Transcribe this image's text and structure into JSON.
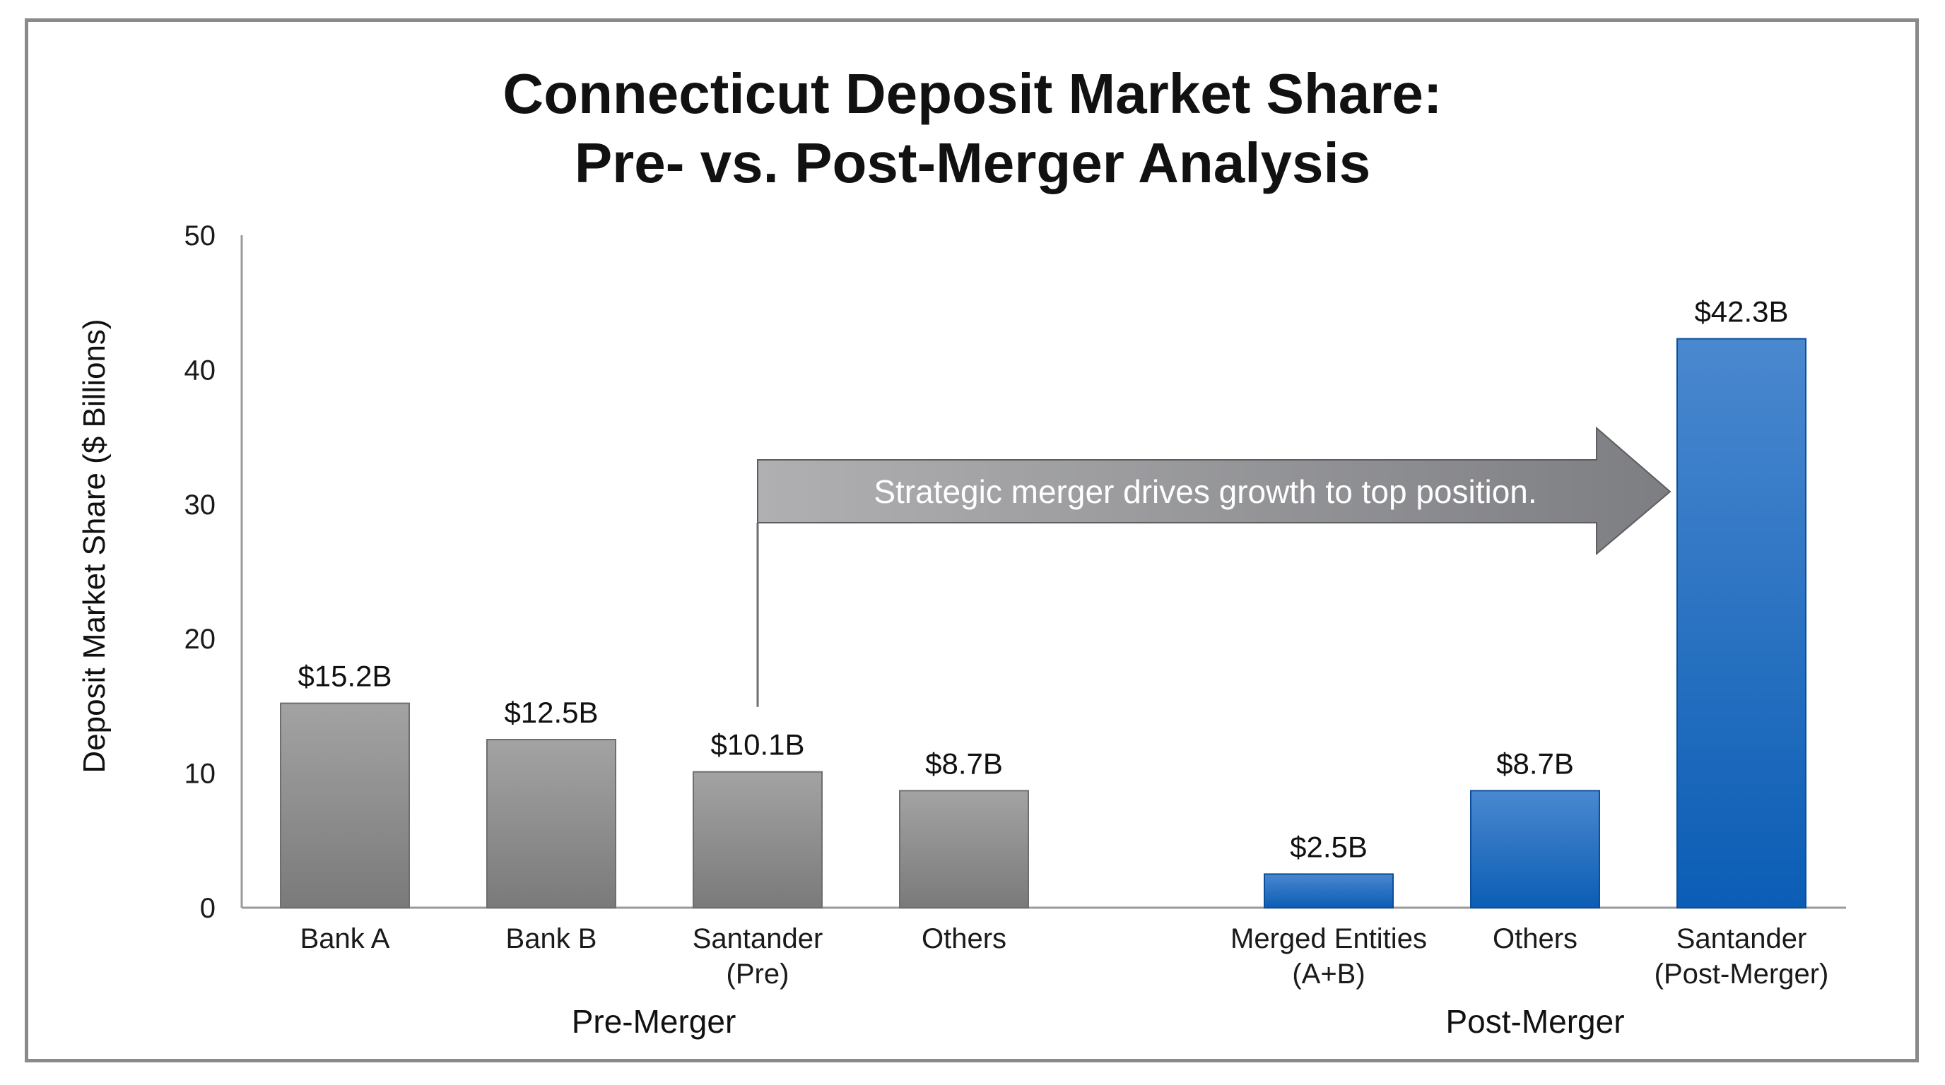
{
  "chart_data": {
    "type": "bar",
    "title_lines": [
      "Connecticut Deposit Market Share:",
      "Pre- vs. Post-Merger Analysis"
    ],
    "ylabel": "Deposit Market Share ($ Billions)",
    "ylim": [
      0,
      50
    ],
    "yticks": [
      0,
      10,
      20,
      30,
      40,
      50
    ],
    "grid": false,
    "groups": [
      {
        "name": "Pre-Merger",
        "style": "gray",
        "bars": [
          {
            "category": [
              "Bank A"
            ],
            "value": 15.2,
            "label": "$15.2B"
          },
          {
            "category": [
              "Bank B"
            ],
            "value": 12.5,
            "label": "$12.5B"
          },
          {
            "category": [
              "Santander",
              "(Pre)"
            ],
            "value": 10.1,
            "label": "$10.1B"
          },
          {
            "category": [
              "Others"
            ],
            "value": 8.7,
            "label": "$8.7B"
          }
        ]
      },
      {
        "name": "Post-Merger",
        "style": "blue",
        "bars": [
          {
            "category": [
              "Merged Entities",
              "(A+B)"
            ],
            "value": 2.5,
            "label": "$2.5B"
          },
          {
            "category": [
              "Others"
            ],
            "value": 8.7,
            "label": "$8.7B"
          },
          {
            "category": [
              "Santander",
              "(Post-Merger)"
            ],
            "value": 42.3,
            "label": "$42.3B"
          }
        ]
      }
    ],
    "annotation": {
      "text": "Strategic merger drives growth to top position.",
      "from_bar": "Santander (Pre)",
      "to_bar": "Santander (Post-Merger)"
    },
    "colors": {
      "gray_top": "#a3a3a3",
      "gray_bottom": "#7a7a7a",
      "gray_edge": "#6e6e6e",
      "blue_top": "#4a88cf",
      "blue_bottom": "#0b5db5",
      "blue_edge": "#0a4f9a",
      "arrow_left": "#b0b0b2",
      "arrow_right": "#7d7e82",
      "axis": "#9a9a9a",
      "text": "#111111"
    }
  }
}
